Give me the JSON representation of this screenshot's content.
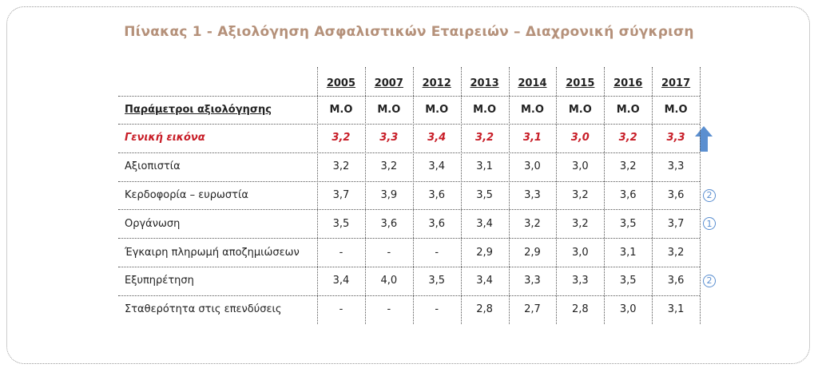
{
  "title": "Πίνακας 1 - Αξιολόγηση Ασφαλιστικών Εταιρειών – Διαχρονική σύγκριση",
  "table": {
    "header": [
      "2005",
      "2007",
      "2012",
      "2013",
      "2014",
      "2015",
      "2016",
      "2017"
    ],
    "subheader": {
      "label": "Παράμετροι αξιολόγησης",
      "cells": [
        "Μ.Ο",
        "Μ.Ο",
        "Μ.Ο",
        "Μ.Ο",
        "Μ.Ο",
        "Μ.Ο",
        "Μ.Ο",
        "Μ.Ο"
      ]
    },
    "rows": [
      {
        "label": "Γενική εικόνα",
        "cells": [
          "3,2",
          "3,3",
          "3,4",
          "3,2",
          "3,1",
          "3,0",
          "3,2",
          "3,3"
        ]
      },
      {
        "label": "Αξιοπιστία",
        "cells": [
          "3,2",
          "3,2",
          "3,4",
          "3,1",
          "3,0",
          "3,0",
          "3,2",
          "3,3"
        ]
      },
      {
        "label": "Κερδοφορία – ευρωστία",
        "cells": [
          "3,7",
          "3,9",
          "3,6",
          "3,5",
          "3,3",
          "3,2",
          "3,6",
          "3,6"
        ],
        "marker": "2"
      },
      {
        "label": "Οργάνωση",
        "cells": [
          "3,5",
          "3,6",
          "3,6",
          "3,4",
          "3,2",
          "3,2",
          "3,5",
          "3,7"
        ],
        "marker": "1"
      },
      {
        "label": "Έγκαιρη πληρωμή αποζημιώσεων",
        "cells": [
          "-",
          "-",
          "-",
          "2,9",
          "2,9",
          "3,0",
          "3,1",
          "3,2"
        ]
      },
      {
        "label": "Εξυπηρέτηση",
        "cells": [
          "3,4",
          "4,0",
          "3,5",
          "3,4",
          "3,3",
          "3,3",
          "3,5",
          "3,6"
        ],
        "marker": "2"
      },
      {
        "label": "Σταθερότητα στις επενδύσεις",
        "cells": [
          "-",
          "-",
          "-",
          "2,8",
          "2,7",
          "2,8",
          "3,0",
          "3,1"
        ]
      }
    ]
  }
}
